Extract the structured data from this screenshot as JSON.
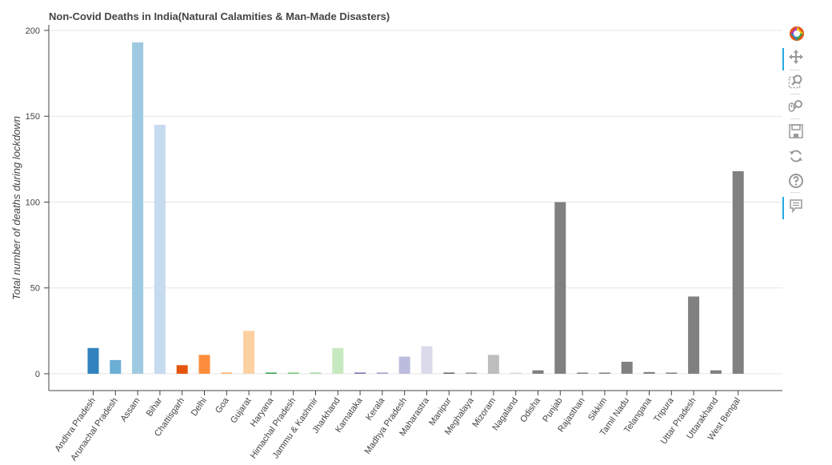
{
  "chart_data": {
    "type": "bar",
    "title": "Non-Covid Deaths in India(Natural Calamities & Man-Made Disasters)",
    "xlabel": "",
    "ylabel": "Total number of deaths during lockdown",
    "ylim": [
      -10,
      200
    ],
    "yticks": [
      0,
      50,
      100,
      150,
      200
    ],
    "grid": "horizontal",
    "categories": [
      "Andhra Pradesh",
      "Arunachal Pradesh",
      "Assam",
      "Bihar",
      "Chattisgarh",
      "Delhi",
      "Goa",
      "Gujarat",
      "Haryana",
      "Himachal Pradesh",
      "Jammu & Kashmir",
      "Jharkhand",
      "Karnataka",
      "Kerala",
      "Madhya Pradesh",
      "Maharastra",
      "Manipur",
      "Meghalaya",
      "Mizoram",
      "Nagaland",
      "Odisha",
      "Punjab",
      "Rajasthan",
      "Sikkim",
      "Tamil Nadu",
      "Telangana",
      "Tripura",
      "Uttar Pradesh",
      "Uttarakhand",
      "West Bengal"
    ],
    "values": [
      15,
      8,
      193,
      145,
      5,
      11,
      0,
      25,
      0,
      0,
      0,
      15,
      0,
      0,
      10,
      16,
      0,
      0,
      11,
      0,
      2,
      100,
      0,
      0,
      7,
      1,
      0,
      45,
      2,
      118
    ],
    "colors": [
      "#3182bd",
      "#6baed6",
      "#9ecae1",
      "#c6dbef",
      "#e6550d",
      "#fd8d3c",
      "#fdae6b",
      "#fdd0a2",
      "#31a354",
      "#74c476",
      "#a1d99b",
      "#c7e9c0",
      "#756bb1",
      "#9e9ac8",
      "#bcbddc",
      "#dadaeb",
      "#636363",
      "#969696",
      "#bdbdbd",
      "#d9d9d9",
      "#808080",
      "#808080",
      "#808080",
      "#808080",
      "#808080",
      "#808080",
      "#808080",
      "#808080",
      "#808080",
      "#808080"
    ]
  },
  "toolbar": {
    "tools": [
      {
        "name": "bokeh-logo-icon",
        "active": false,
        "interactable": false
      },
      {
        "name": "pan-tool-icon",
        "active": true,
        "interactable": true
      },
      {
        "name": "box-zoom-tool-icon",
        "active": false,
        "interactable": true
      },
      {
        "name": "wheel-zoom-tool-icon",
        "active": false,
        "interactable": true
      },
      {
        "name": "save-tool-icon",
        "active": false,
        "interactable": true
      },
      {
        "name": "reset-tool-icon",
        "active": false,
        "interactable": true
      },
      {
        "name": "help-tool-icon",
        "active": false,
        "interactable": true
      },
      {
        "name": "hover-tool-icon",
        "active": true,
        "interactable": true
      }
    ]
  }
}
